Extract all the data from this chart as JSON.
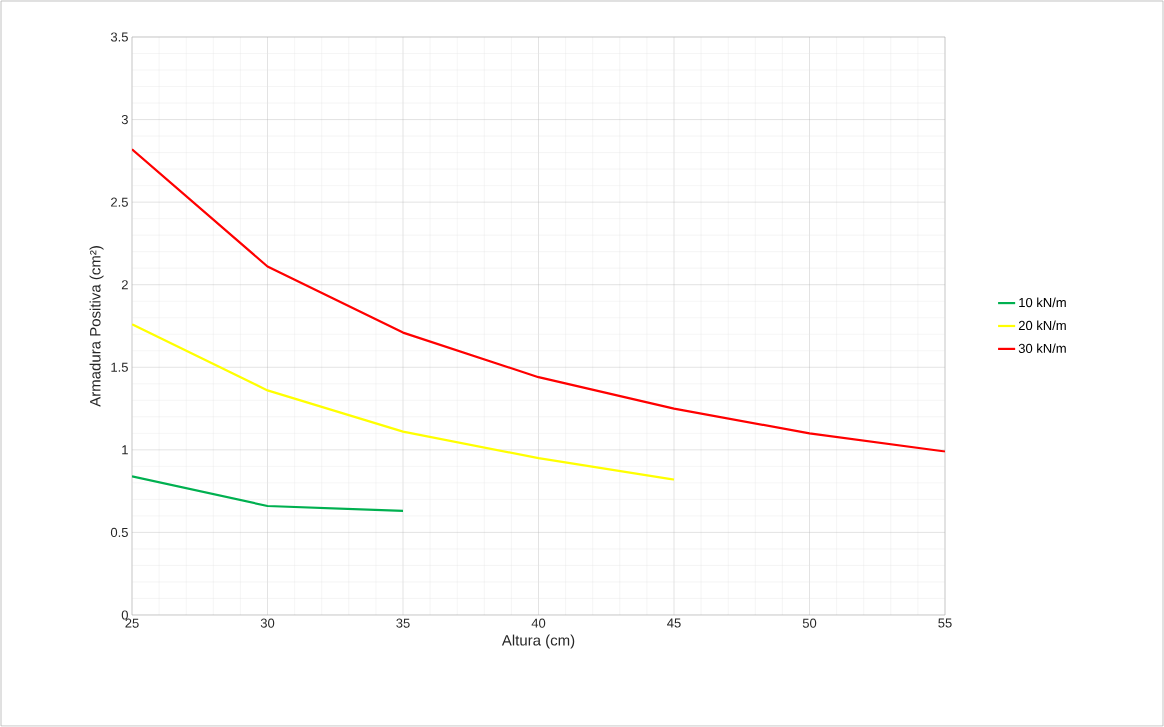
{
  "chart_data": {
    "type": "line",
    "xlabel": "Altura (cm)",
    "ylabel": "Armadura Positiva (cm²)",
    "series": [
      {
        "name": "10 kN/m",
        "color": "#00b050",
        "x": [
          25,
          30,
          35
        ],
        "values": [
          0.84,
          0.66,
          0.63
        ]
      },
      {
        "name": "20 kN/m",
        "color": "#ffff00",
        "x": [
          25,
          30,
          35,
          40,
          45
        ],
        "values": [
          1.76,
          1.36,
          1.11,
          0.95,
          0.82
        ]
      },
      {
        "name": "30 kN/m",
        "color": "#ff0000",
        "x": [
          25,
          30,
          35,
          40,
          45,
          50,
          55
        ],
        "values": [
          2.82,
          2.11,
          1.71,
          1.44,
          1.25,
          1.1,
          0.99
        ]
      }
    ],
    "xlim": [
      25,
      55
    ],
    "ylim": [
      0,
      3.5
    ],
    "xticks": [
      25,
      30,
      35,
      40,
      45,
      50,
      55
    ],
    "yticks": [
      0,
      0.5,
      1,
      1.5,
      2,
      2.5,
      3,
      3.5
    ],
    "grid": true,
    "legend": "right",
    "marker": "none",
    "line_style": "solid"
  }
}
